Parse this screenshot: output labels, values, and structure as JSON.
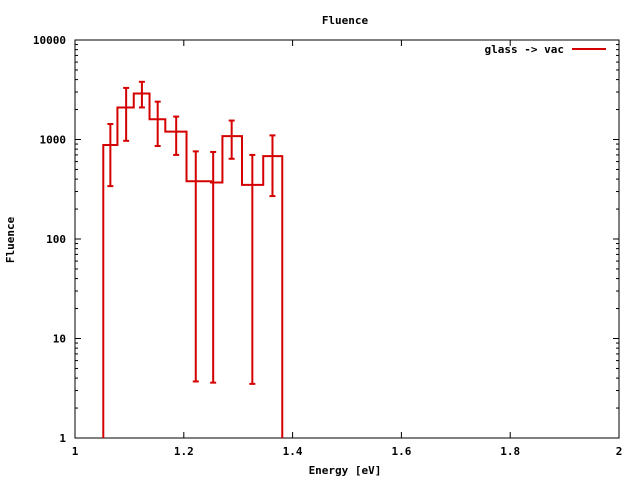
{
  "chart_data": {
    "type": "line",
    "title": "Fluence",
    "xlabel": "Energy [eV]",
    "ylabel": "Fluence",
    "xlim": [
      1,
      2
    ],
    "ylim": [
      1,
      10000
    ],
    "yscale": "log",
    "grid": false,
    "legend_position": "top-right",
    "x_ticks": [
      "1",
      "1.2",
      "1.4",
      "1.6",
      "1.8",
      "2"
    ],
    "x_tick_values": [
      1,
      1.2,
      1.4,
      1.6,
      1.8,
      2
    ],
    "y_ticks": [
      "1",
      "10",
      "100",
      "1000",
      "10000"
    ],
    "y_tick_values": [
      1,
      10,
      100,
      1000,
      10000
    ],
    "series": [
      {
        "name": "glass -> vac",
        "color": "#d40000",
        "style": "histogram-steps-with-errorbars",
        "bin_edges": [
          1.052,
          1.078,
          1.108,
          1.137,
          1.166,
          1.205,
          1.25,
          1.271,
          1.307,
          1.346,
          1.381
        ],
        "values": [
          880,
          2100,
          2900,
          1600,
          1200,
          380,
          370,
          1080,
          350,
          680
        ],
        "error_x": [
          1.065,
          1.094,
          1.123,
          1.152,
          1.186,
          1.222,
          1.254,
          1.288,
          1.326,
          1.363
        ],
        "err_low": [
          340,
          970,
          2100,
          860,
          700,
          3.7,
          3.6,
          640,
          3.5,
          270
        ],
        "err_high": [
          1430,
          3300,
          3800,
          2400,
          1700,
          760,
          750,
          1550,
          700,
          1100
        ]
      }
    ]
  }
}
